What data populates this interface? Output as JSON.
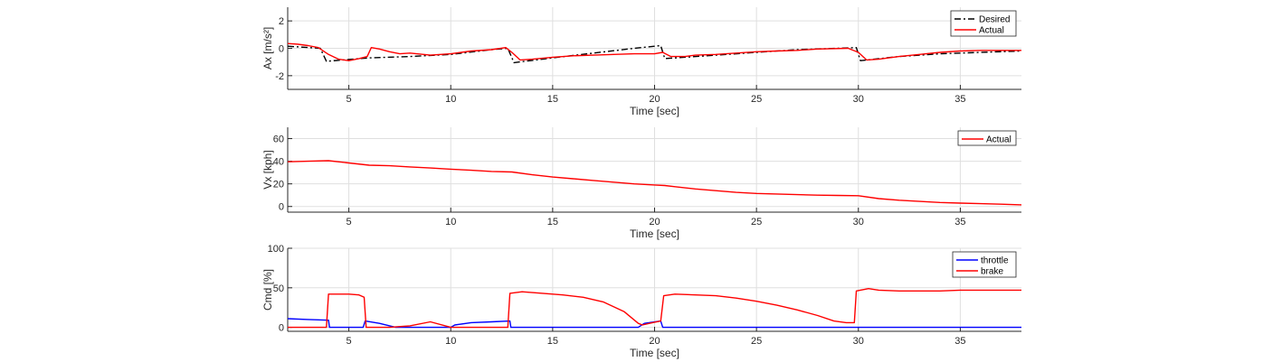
{
  "chart_data": [
    {
      "type": "line",
      "ylabel": "Ax [m/s²]",
      "xlabel": "Time [sec]",
      "xlim": [
        2,
        38
      ],
      "ylim": [
        -3,
        3
      ],
      "xticks": [
        5,
        10,
        15,
        20,
        25,
        30,
        35
      ],
      "yticks": [
        -2,
        0,
        2
      ],
      "grid": true,
      "legend_position": "top-right",
      "series": [
        {
          "name": "Desired",
          "color": "#000000",
          "dash": "dashdot",
          "points": [
            [
              2,
              0.15
            ],
            [
              3.6,
              0.0
            ],
            [
              3.9,
              -0.95
            ],
            [
              6,
              -0.7
            ],
            [
              8,
              -0.6
            ],
            [
              10,
              -0.45
            ],
            [
              12,
              -0.1
            ],
            [
              12.8,
              0.0
            ],
            [
              13.1,
              -1.05
            ],
            [
              15,
              -0.7
            ],
            [
              17,
              -0.35
            ],
            [
              19,
              0.0
            ],
            [
              20.3,
              0.2
            ],
            [
              20.5,
              -0.75
            ],
            [
              23,
              -0.5
            ],
            [
              25,
              -0.3
            ],
            [
              27,
              -0.1
            ],
            [
              29,
              0.0
            ],
            [
              29.9,
              0.05
            ],
            [
              30.1,
              -0.9
            ],
            [
              32,
              -0.6
            ],
            [
              34,
              -0.4
            ],
            [
              36,
              -0.3
            ],
            [
              38,
              -0.2
            ]
          ]
        },
        {
          "name": "Actual",
          "color": "#ff0000",
          "points": [
            [
              2,
              0.35
            ],
            [
              2.5,
              0.3
            ],
            [
              3,
              0.2
            ],
            [
              3.5,
              0.05
            ],
            [
              4,
              -0.45
            ],
            [
              4.5,
              -0.8
            ],
            [
              5,
              -0.9
            ],
            [
              5.5,
              -0.75
            ],
            [
              5.9,
              -0.6
            ],
            [
              6.1,
              0.05
            ],
            [
              6.5,
              -0.05
            ],
            [
              7,
              -0.25
            ],
            [
              7.5,
              -0.4
            ],
            [
              8,
              -0.35
            ],
            [
              9,
              -0.5
            ],
            [
              10,
              -0.4
            ],
            [
              11,
              -0.2
            ],
            [
              12,
              -0.1
            ],
            [
              12.7,
              0.05
            ],
            [
              13,
              -0.3
            ],
            [
              13.4,
              -0.85
            ],
            [
              14,
              -0.8
            ],
            [
              15,
              -0.65
            ],
            [
              16,
              -0.55
            ],
            [
              17,
              -0.5
            ],
            [
              18,
              -0.45
            ],
            [
              19,
              -0.4
            ],
            [
              20,
              -0.4
            ],
            [
              20.4,
              -0.3
            ],
            [
              20.8,
              -0.6
            ],
            [
              21.5,
              -0.6
            ],
            [
              22,
              -0.5
            ],
            [
              23,
              -0.45
            ],
            [
              24,
              -0.35
            ],
            [
              25,
              -0.25
            ],
            [
              26,
              -0.2
            ],
            [
              27,
              -0.15
            ],
            [
              28,
              -0.05
            ],
            [
              29.5,
              0.0
            ],
            [
              30,
              -0.3
            ],
            [
              30.4,
              -0.85
            ],
            [
              31,
              -0.8
            ],
            [
              32,
              -0.6
            ],
            [
              33,
              -0.45
            ],
            [
              34,
              -0.3
            ],
            [
              35,
              -0.2
            ],
            [
              36,
              -0.15
            ],
            [
              37,
              -0.15
            ],
            [
              38,
              -0.15
            ]
          ]
        }
      ]
    },
    {
      "type": "line",
      "ylabel": "Vx [kph]",
      "xlabel": "Time [sec]",
      "xlim": [
        2,
        38
      ],
      "ylim": [
        -5,
        70
      ],
      "xticks": [
        5,
        10,
        15,
        20,
        25,
        30,
        35
      ],
      "yticks": [
        0,
        20,
        40,
        60
      ],
      "grid": true,
      "legend_position": "top-right",
      "series": [
        {
          "name": "Actual",
          "color": "#ff0000",
          "points": [
            [
              2,
              39.5
            ],
            [
              3,
              40
            ],
            [
              4,
              40.5
            ],
            [
              5,
              38.5
            ],
            [
              6,
              36.5
            ],
            [
              7,
              36
            ],
            [
              8,
              35
            ],
            [
              9,
              34
            ],
            [
              10,
              33
            ],
            [
              11,
              32
            ],
            [
              12,
              31
            ],
            [
              13,
              30.5
            ],
            [
              14,
              28
            ],
            [
              15,
              26
            ],
            [
              16,
              24.5
            ],
            [
              17,
              23
            ],
            [
              18,
              21.5
            ],
            [
              19,
              20
            ],
            [
              20,
              19
            ],
            [
              20.5,
              18.5
            ],
            [
              21,
              17.5
            ],
            [
              22,
              15.5
            ],
            [
              23,
              14
            ],
            [
              24,
              12.5
            ],
            [
              25,
              11.5
            ],
            [
              26,
              11
            ],
            [
              27,
              10.5
            ],
            [
              28,
              10
            ],
            [
              29,
              9.8
            ],
            [
              30,
              9.5
            ],
            [
              31,
              7
            ],
            [
              32,
              5.5
            ],
            [
              33,
              4.5
            ],
            [
              34,
              3.5
            ],
            [
              35,
              3
            ],
            [
              36,
              2.5
            ],
            [
              37,
              2
            ],
            [
              38,
              1.5
            ]
          ]
        }
      ]
    },
    {
      "type": "line",
      "ylabel": "Cmd [%]",
      "xlabel": "Time [sec]",
      "xlim": [
        2,
        38
      ],
      "ylim": [
        -5,
        100
      ],
      "xticks": [
        5,
        10,
        15,
        20,
        25,
        30,
        35
      ],
      "yticks": [
        0,
        50,
        100
      ],
      "grid": true,
      "legend_position": "top-right",
      "series": [
        {
          "name": "throttle",
          "color": "#0000ff",
          "points": [
            [
              2,
              11
            ],
            [
              3,
              10
            ],
            [
              4,
              9
            ],
            [
              4.05,
              0
            ],
            [
              5.7,
              0
            ],
            [
              5.8,
              8
            ],
            [
              6.5,
              5
            ],
            [
              7,
              2
            ],
            [
              7.3,
              0
            ],
            [
              9,
              0
            ],
            [
              10,
              0
            ],
            [
              10.2,
              3
            ],
            [
              11,
              6
            ],
            [
              12,
              7
            ],
            [
              12.9,
              8
            ],
            [
              12.95,
              0
            ],
            [
              19.2,
              0
            ],
            [
              19.5,
              5
            ],
            [
              20.3,
              8
            ],
            [
              20.4,
              0
            ],
            [
              38,
              0
            ]
          ]
        },
        {
          "name": "brake",
          "color": "#ff0000",
          "points": [
            [
              2,
              0
            ],
            [
              3.9,
              0
            ],
            [
              4.0,
              42
            ],
            [
              5,
              42
            ],
            [
              5.5,
              41
            ],
            [
              5.75,
              38
            ],
            [
              5.85,
              0
            ],
            [
              7,
              0
            ],
            [
              8,
              2
            ],
            [
              9,
              7
            ],
            [
              10,
              0
            ],
            [
              12.8,
              0
            ],
            [
              12.9,
              43
            ],
            [
              13.5,
              45
            ],
            [
              14.5,
              43
            ],
            [
              15.5,
              41
            ],
            [
              16.5,
              38
            ],
            [
              17.5,
              32
            ],
            [
              18.5,
              20
            ],
            [
              19.2,
              5
            ],
            [
              19.4,
              3
            ],
            [
              19.9,
              6
            ],
            [
              20.3,
              8
            ],
            [
              20.45,
              40
            ],
            [
              21,
              42
            ],
            [
              22,
              41
            ],
            [
              23,
              40
            ],
            [
              24,
              37
            ],
            [
              25,
              33
            ],
            [
              26,
              28
            ],
            [
              27,
              22
            ],
            [
              28,
              15
            ],
            [
              28.8,
              8
            ],
            [
              29.4,
              6
            ],
            [
              29.8,
              6
            ],
            [
              29.9,
              46
            ],
            [
              30.5,
              49
            ],
            [
              31,
              47
            ],
            [
              32,
              46
            ],
            [
              33,
              46
            ],
            [
              34,
              46
            ],
            [
              35,
              47
            ],
            [
              36,
              47
            ],
            [
              37,
              47
            ],
            [
              38,
              47
            ]
          ]
        }
      ]
    }
  ]
}
